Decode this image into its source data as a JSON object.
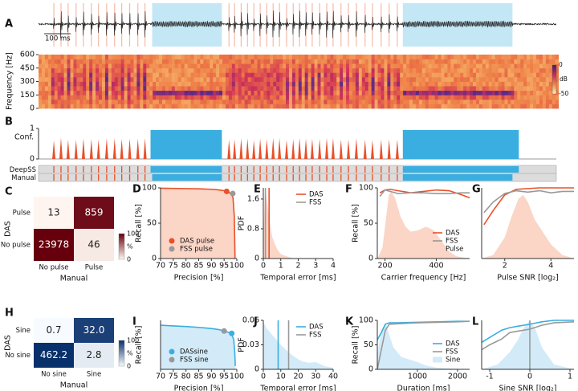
{
  "chart_data": [
    {
      "type": "timeline",
      "panel_labels": [
        "A",
        "B"
      ],
      "xlim": [
        0,
        1960
      ],
      "scale_bar": {
        "value": 100,
        "label": "100 ms"
      },
      "ylabel": "Frequency [Hz]",
      "ylim": [
        0,
        600
      ],
      "yticks": [
        0,
        150,
        300,
        450,
        600
      ],
      "colorbar_lim": [
        -50,
        0
      ],
      "colorbar_ticks": [
        0,
        -50
      ],
      "colorbar_label": "dB",
      "conf_label": "Conf.",
      "conf_ylim": [
        0,
        1
      ],
      "conf_yticks": [
        0,
        1
      ],
      "pulse_color": "#e8502a",
      "sine_color": "#3aaee0",
      "tracks": [
        {
          "name": "DeepSS",
          "pulses": [
            58,
            85,
            112,
            142,
            170,
            200,
            227,
            258,
            288,
            315,
            345,
            376,
            403,
            721,
            742,
            767,
            791,
            815,
            839,
            864,
            888,
            912,
            939,
            964,
            988,
            1012,
            1036,
            1064,
            1091,
            1115,
            1145,
            1173,
            1203,
            1236,
            1264,
            1297,
            1327,
            1358
          ],
          "sines": [
            [
              424,
              694
            ],
            [
              1379,
              1818
            ]
          ]
        },
        {
          "name": "Manual",
          "pulses": [
            58,
            85,
            112,
            142,
            170,
            200,
            227,
            258,
            288,
            315,
            345,
            376,
            403,
            721,
            742,
            767,
            791,
            815,
            839,
            864,
            888,
            912,
            939,
            964,
            988,
            1012,
            1036,
            1064,
            1091,
            1115,
            1145,
            1173,
            1203,
            1236,
            1264,
            1297,
            1327,
            1358
          ],
          "sines": [
            [
              430,
              694
            ],
            [
              1379,
              1794
            ]
          ]
        }
      ]
    },
    {
      "type": "confusion_matrix",
      "panel_label": "C",
      "ylabel": "DAS",
      "xlabel": "Manual",
      "row_labels": [
        "Pulse",
        "No pulse"
      ],
      "col_labels": [
        "No pulse",
        "Pulse"
      ],
      "values": [
        [
          13,
          859
        ],
        [
          23978,
          46
        ]
      ],
      "cmap": [
        "#fff5f0",
        "#67000d"
      ],
      "colorbar_lim": [
        0,
        100
      ],
      "colorbar_ticks": [
        0,
        100
      ],
      "colorbar_label": "%"
    },
    {
      "type": "line",
      "panel_label": "D",
      "xlabel": "Precision [%]",
      "ylabel": "Recall [%]",
      "xlim": [
        70,
        100
      ],
      "xticks": [
        70,
        75,
        80,
        85,
        90,
        95,
        100
      ],
      "ylim": [
        0,
        100
      ],
      "yticks": [
        0,
        50,
        100
      ],
      "area": {
        "x": [
          70,
          75,
          80,
          85,
          88,
          90,
          92,
          94,
          95,
          96,
          97,
          98,
          98.5,
          99,
          99.2,
          99.3
        ],
        "values": [
          99.5,
          99.3,
          99,
          98.6,
          98.3,
          98,
          97.5,
          96.5,
          96,
          95,
          93.5,
          90,
          86,
          60,
          20,
          0
        ],
        "color": "#fbd5c6",
        "edge_color": "#e8502a"
      },
      "points": [
        {
          "name": "DAS pulse",
          "color": "#e8502a",
          "x": [
            96
          ],
          "values": [
            95
          ]
        },
        {
          "name": "FSS pulse",
          "color": "#999999",
          "x": [
            98.4
          ],
          "values": [
            92
          ]
        }
      ],
      "legend": "lower left"
    },
    {
      "type": "line",
      "panel_label": "E",
      "xlabel": "Temporal error [ms]",
      "ylabel": "PDF",
      "xlim": [
        0,
        4
      ],
      "xticks": [
        0,
        1,
        2,
        3,
        4
      ],
      "ylim": [
        0,
        1.9
      ],
      "yticks": [
        0,
        0.8,
        1.6
      ],
      "area": {
        "x": [
          0,
          0.1,
          0.2,
          0.3,
          0.4,
          0.5,
          0.6,
          0.8,
          1,
          1.2,
          1.4,
          1.6,
          2
        ],
        "values": [
          0.6,
          1.9,
          1.6,
          1.2,
          0.9,
          0.6,
          0.45,
          0.25,
          0.12,
          0.08,
          0.05,
          0.02,
          0
        ],
        "color": "#fbd5c6"
      },
      "vlines": [
        {
          "name": "DAS",
          "color": "#e8502a",
          "x": 0.33
        },
        {
          "name": "FSS",
          "color": "#999999",
          "x": 0.12
        }
      ],
      "legend": "upper right"
    },
    {
      "type": "line",
      "panel_label": "F",
      "xlabel": "Carrier frequency [Hz]",
      "ylabel": "Recall [%]",
      "xlim": [
        170,
        530
      ],
      "xticks": [
        200,
        400
      ],
      "ylim": [
        0,
        100
      ],
      "yticks": [
        0,
        50,
        100
      ],
      "series": [
        {
          "name": "DAS",
          "color": "#e8502a",
          "x": [
            180,
            200,
            220,
            250,
            300,
            350,
            400,
            450,
            500,
            530
          ],
          "values": [
            93,
            97,
            98,
            96,
            93,
            95,
            97,
            96,
            90,
            86
          ]
        },
        {
          "name": "FSS",
          "color": "#999999",
          "x": [
            180,
            200,
            220,
            250,
            300,
            350,
            400,
            450,
            500,
            530
          ],
          "values": [
            88,
            97,
            95,
            92,
            93,
            93,
            92,
            92,
            93,
            93
          ]
        }
      ],
      "area": {
        "name": "Pulse",
        "color": "#fbd5c6",
        "x": [
          170,
          190,
          205,
          215,
          225,
          240,
          260,
          280,
          300,
          330,
          360,
          390,
          420,
          450,
          480,
          530
        ],
        "values": [
          0,
          15,
          60,
          90,
          95,
          85,
          60,
          45,
          38,
          40,
          45,
          40,
          25,
          10,
          3,
          0
        ]
      },
      "legend": "lower right"
    },
    {
      "type": "line",
      "panel_label": "G",
      "xlabel": "Pulse SNR [log₂]",
      "xlim": [
        1,
        5
      ],
      "xticks": [
        2,
        4
      ],
      "ylim": [
        0,
        100
      ],
      "series": [
        {
          "name": "DAS",
          "color": "#e8502a",
          "x": [
            1.1,
            1.5,
            2,
            2.5,
            3,
            3.5,
            4,
            4.5,
            5
          ],
          "values": [
            48,
            68,
            90,
            98,
            99,
            100,
            100,
            100,
            100
          ]
        },
        {
          "name": "FSS",
          "color": "#999999",
          "x": [
            1.1,
            1.5,
            2,
            2.5,
            3,
            3.5,
            4,
            4.5,
            5
          ],
          "values": [
            65,
            80,
            92,
            96,
            94,
            96,
            93,
            95,
            95
          ]
        }
      ],
      "area": {
        "color": "#fbd5c6",
        "x": [
          1,
          1.5,
          2,
          2.3,
          2.6,
          2.8,
          3,
          3.3,
          3.6,
          4,
          4.5,
          5
        ],
        "values": [
          0,
          5,
          30,
          60,
          85,
          90,
          80,
          55,
          40,
          20,
          5,
          0
        ]
      }
    },
    {
      "type": "confusion_matrix",
      "panel_label": "H",
      "ylabel": "DAS",
      "xlabel": "Manual",
      "row_labels": [
        "Sine",
        "No sine"
      ],
      "col_labels": [
        "No sine",
        "Sine"
      ],
      "values": [
        [
          0.7,
          32.0
        ],
        [
          462.2,
          2.8
        ]
      ],
      "value_labels": [
        [
          "0.7",
          "32.0"
        ],
        [
          "462.2",
          "2.8"
        ]
      ],
      "cmap": [
        "#f7fbff",
        "#08306b"
      ],
      "colorbar_lim": [
        0,
        100
      ],
      "colorbar_ticks": [
        0,
        100
      ],
      "colorbar_label": "%"
    },
    {
      "type": "line",
      "panel_label": "I",
      "xlabel": "Precision [%]",
      "ylabel": "Recall [%]",
      "xlim": [
        70,
        100
      ],
      "xticks": [
        70,
        75,
        80,
        85,
        90,
        95,
        100
      ],
      "ylim": [
        70,
        100
      ],
      "area": {
        "x": [
          70,
          75,
          80,
          85,
          90,
          93,
          95,
          97,
          98,
          98.8,
          99.2,
          99.4
        ],
        "values": [
          97,
          96.6,
          96.2,
          95.7,
          95,
          94.3,
          93.5,
          92.5,
          91.5,
          88,
          80,
          72
        ],
        "color": "#d3ebf8",
        "edge_color": "#3aaee0"
      },
      "points": [
        {
          "name": "DASsine",
          "color": "#3aaee0",
          "x": [
            98
          ],
          "values": [
            92
          ]
        },
        {
          "name": "FSS sine",
          "color": "#999999",
          "x": [
            95
          ],
          "values": [
            93.5
          ]
        }
      ],
      "legend": "lower left"
    },
    {
      "type": "line",
      "panel_label": "J",
      "xlabel": "Temporal error [ms]",
      "ylabel": "PDF",
      "xlim": [
        0,
        40
      ],
      "xticks": [
        0,
        10,
        20,
        30,
        40
      ],
      "ylim": [
        0,
        0.06
      ],
      "yticks": [
        0,
        0.03,
        0.06
      ],
      "area": {
        "x": [
          0,
          2,
          4,
          6,
          8,
          10,
          12,
          15,
          18,
          22,
          26,
          30,
          35,
          40
        ],
        "values": [
          0.058,
          0.05,
          0.045,
          0.04,
          0.035,
          0.03,
          0.026,
          0.02,
          0.015,
          0.01,
          0.008,
          0.009,
          0.004,
          0.002
        ],
        "color": "#d3ebf8"
      },
      "vlines": [
        {
          "name": "DAS",
          "color": "#3aaee0",
          "x": 8.5
        },
        {
          "name": "FSS",
          "color": "#999999",
          "x": 14.5
        }
      ],
      "legend": "upper right"
    },
    {
      "type": "line",
      "panel_label": "K",
      "xlabel": "Duration [ms]",
      "ylabel": "Recall [%]",
      "xlim": [
        0,
        2300
      ],
      "xticks": [
        1000,
        2000
      ],
      "ylim": [
        0,
        100
      ],
      "yticks": [
        0,
        50,
        100
      ],
      "series": [
        {
          "name": "DAS",
          "color": "#3aaee0",
          "x": [
            0,
            100,
            200,
            300,
            500,
            1000,
            1500,
            2000,
            2300
          ],
          "values": [
            60,
            75,
            92,
            95,
            95,
            96,
            97,
            98,
            98
          ]
        },
        {
          "name": "FSS",
          "color": "#999999",
          "x": [
            0,
            100,
            200,
            300,
            500,
            1000,
            1500,
            2000,
            2300
          ],
          "values": [
            0,
            40,
            80,
            92,
            93,
            95,
            96,
            97,
            98
          ]
        }
      ],
      "area": {
        "name": "Sine",
        "color": "#d3ebf8",
        "x": [
          0,
          100,
          200,
          300,
          400,
          600,
          800,
          1000,
          1200,
          1500,
          2000,
          2300
        ],
        "values": [
          30,
          80,
          95,
          70,
          45,
          25,
          20,
          15,
          8,
          3,
          1,
          0
        ]
      },
      "legend": "lower right"
    },
    {
      "type": "line",
      "panel_label": "L",
      "xlabel": "Sine SNR [log₂]",
      "xlim": [
        -1.2,
        1.1
      ],
      "xticks": [
        -1,
        0,
        1
      ],
      "ylim": [
        0,
        100
      ],
      "series": [
        {
          "name": "DAS",
          "color": "#3aaee0",
          "x": [
            -1.2,
            -1,
            -0.7,
            -0.5,
            -0.3,
            0,
            0.3,
            0.6,
            1.1
          ],
          "values": [
            55,
            65,
            80,
            85,
            88,
            92,
            97,
            100,
            100
          ]
        },
        {
          "name": "FSS",
          "color": "#999999",
          "x": [
            -1.2,
            -1,
            -0.7,
            -0.5,
            -0.3,
            0,
            0.3,
            0.6,
            1.1
          ],
          "values": [
            40,
            50,
            62,
            75,
            78,
            82,
            90,
            95,
            97
          ]
        }
      ],
      "area": {
        "color": "#d3ebf8",
        "x": [
          -1.2,
          -0.8,
          -0.5,
          -0.3,
          -0.15,
          0,
          0.15,
          0.3,
          0.6,
          1.1
        ],
        "values": [
          0,
          10,
          35,
          60,
          85,
          100,
          80,
          45,
          10,
          0
        ]
      },
      "vlines": [
        {
          "color": "#999999",
          "x": 0
        }
      ]
    }
  ]
}
